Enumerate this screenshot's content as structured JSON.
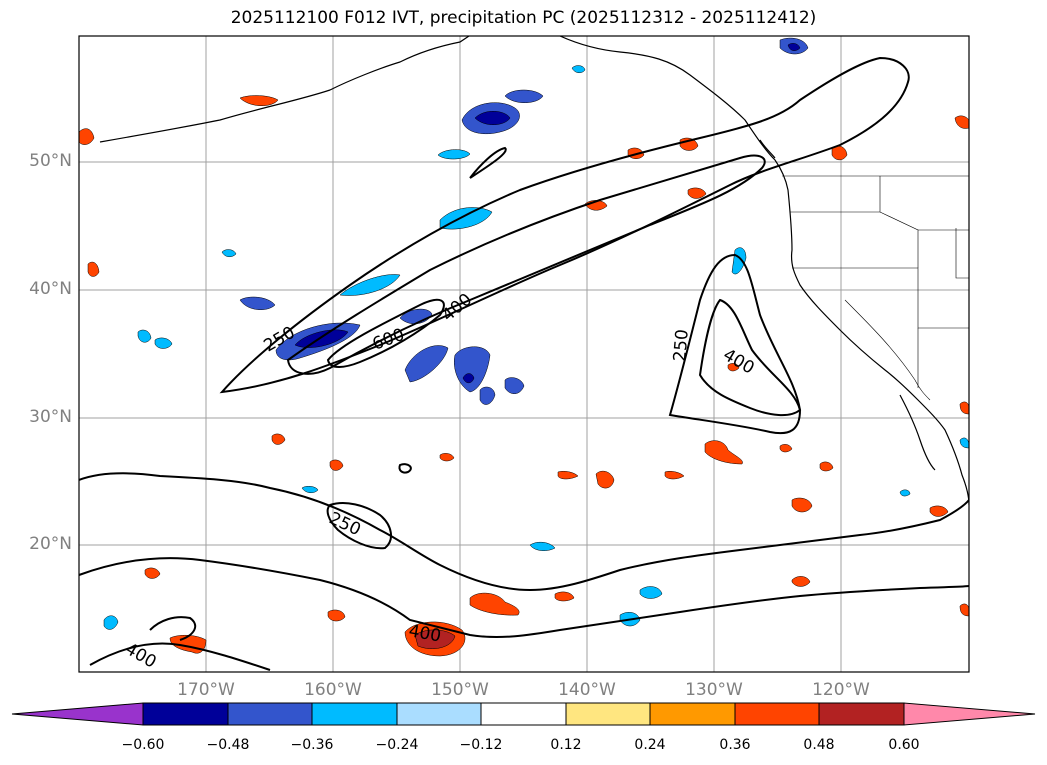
{
  "title": "2025112100 F012 IVT, precipitation PC (2025112312 - 2025112412)",
  "map": {
    "lat_ticks": [
      "50°N",
      "40°N",
      "30°N",
      "20°N"
    ],
    "lon_ticks": [
      "170°W",
      "160°W",
      "150°W",
      "140°W",
      "130°W",
      "120°W"
    ],
    "contour_labels": [
      "250",
      "400",
      "600",
      "250",
      "400",
      "250",
      "400",
      "400"
    ],
    "contour_color": "#000000",
    "grid_color": "#a0a0a0",
    "coast_color": "#000000"
  },
  "colorbar": {
    "ticks": [
      "−0.60",
      "−0.48",
      "−0.36",
      "−0.24",
      "−0.12",
      "0.12",
      "0.24",
      "0.36",
      "0.48",
      "0.60"
    ],
    "colors": [
      "#9933cc",
      "#000099",
      "#3355cc",
      "#00bbff",
      "#aaddff",
      "#ffffff",
      "#ffe680",
      "#ff9900",
      "#ff4400",
      "#b22222",
      "#ff88aa"
    ]
  }
}
